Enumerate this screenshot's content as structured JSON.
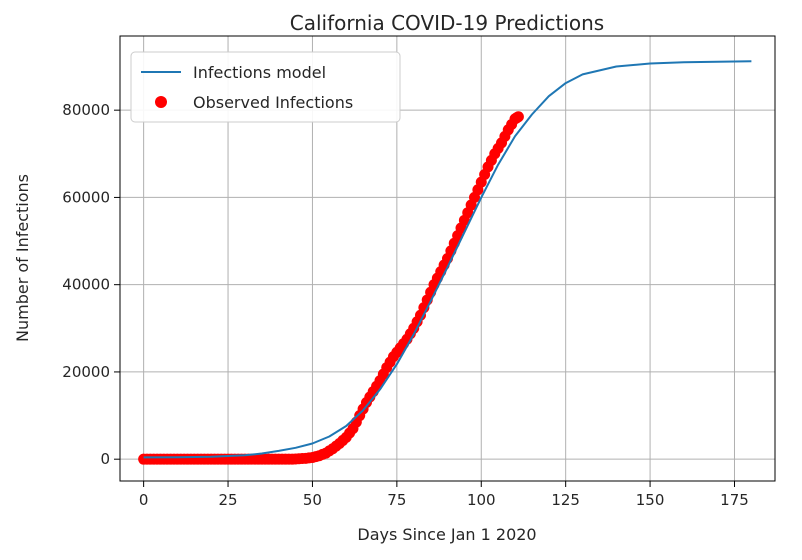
{
  "chart_data": {
    "type": "line",
    "title": "California COVID-19 Predictions",
    "xlabel": "Days Since Jan 1 2020",
    "ylabel": "Number of Infections",
    "xlim": [
      -7,
      187
    ],
    "ylim": [
      -5000,
      97000
    ],
    "x_ticks": [
      0,
      25,
      50,
      75,
      100,
      125,
      150,
      175
    ],
    "y_ticks": [
      0,
      20000,
      40000,
      60000,
      80000
    ],
    "grid": true,
    "legend_position": "top-left",
    "colors": {
      "model": "#1f77b4",
      "observed": "#ff0000"
    },
    "series": [
      {
        "name": "Infections model",
        "kind": "line",
        "x": [
          0,
          10,
          20,
          30,
          35,
          40,
          45,
          50,
          55,
          60,
          65,
          70,
          75,
          80,
          85,
          90,
          95,
          100,
          105,
          110,
          115,
          120,
          125,
          130,
          140,
          150,
          160,
          170,
          180
        ],
        "y": [
          400,
          450,
          550,
          900,
          1300,
          1900,
          2600,
          3600,
          5200,
          7600,
          11200,
          16000,
          21800,
          28600,
          36200,
          44000,
          52000,
          60000,
          67500,
          74000,
          79000,
          83200,
          86200,
          88200,
          90000,
          90700,
          91000,
          91100,
          91200
        ]
      },
      {
        "name": "Observed Infections",
        "kind": "scatter",
        "x": [
          0,
          2,
          4,
          6,
          8,
          10,
          12,
          14,
          16,
          18,
          20,
          22,
          24,
          26,
          28,
          30,
          32,
          34,
          36,
          38,
          40,
          42,
          44,
          46,
          48,
          50,
          52,
          54,
          56,
          58,
          60,
          62,
          64,
          66,
          68,
          70,
          72,
          74,
          76,
          78,
          80,
          82,
          84,
          86,
          88,
          90,
          92,
          94,
          96,
          98,
          100,
          102,
          104,
          106,
          108,
          110,
          111
        ],
        "y": [
          0,
          0,
          0,
          0,
          0,
          0,
          0,
          0,
          0,
          0,
          0,
          0,
          0,
          0,
          0,
          0,
          0,
          0,
          0,
          0,
          0,
          0,
          0,
          100,
          200,
          400,
          800,
          1400,
          2400,
          3600,
          5000,
          7000,
          10000,
          13000,
          15500,
          18000,
          21000,
          23500,
          25500,
          27500,
          30000,
          33000,
          36500,
          40000,
          43000,
          46000,
          49500,
          53000,
          56500,
          60000,
          63500,
          67000,
          70000,
          72500,
          75500,
          78000,
          78500
        ]
      }
    ]
  }
}
